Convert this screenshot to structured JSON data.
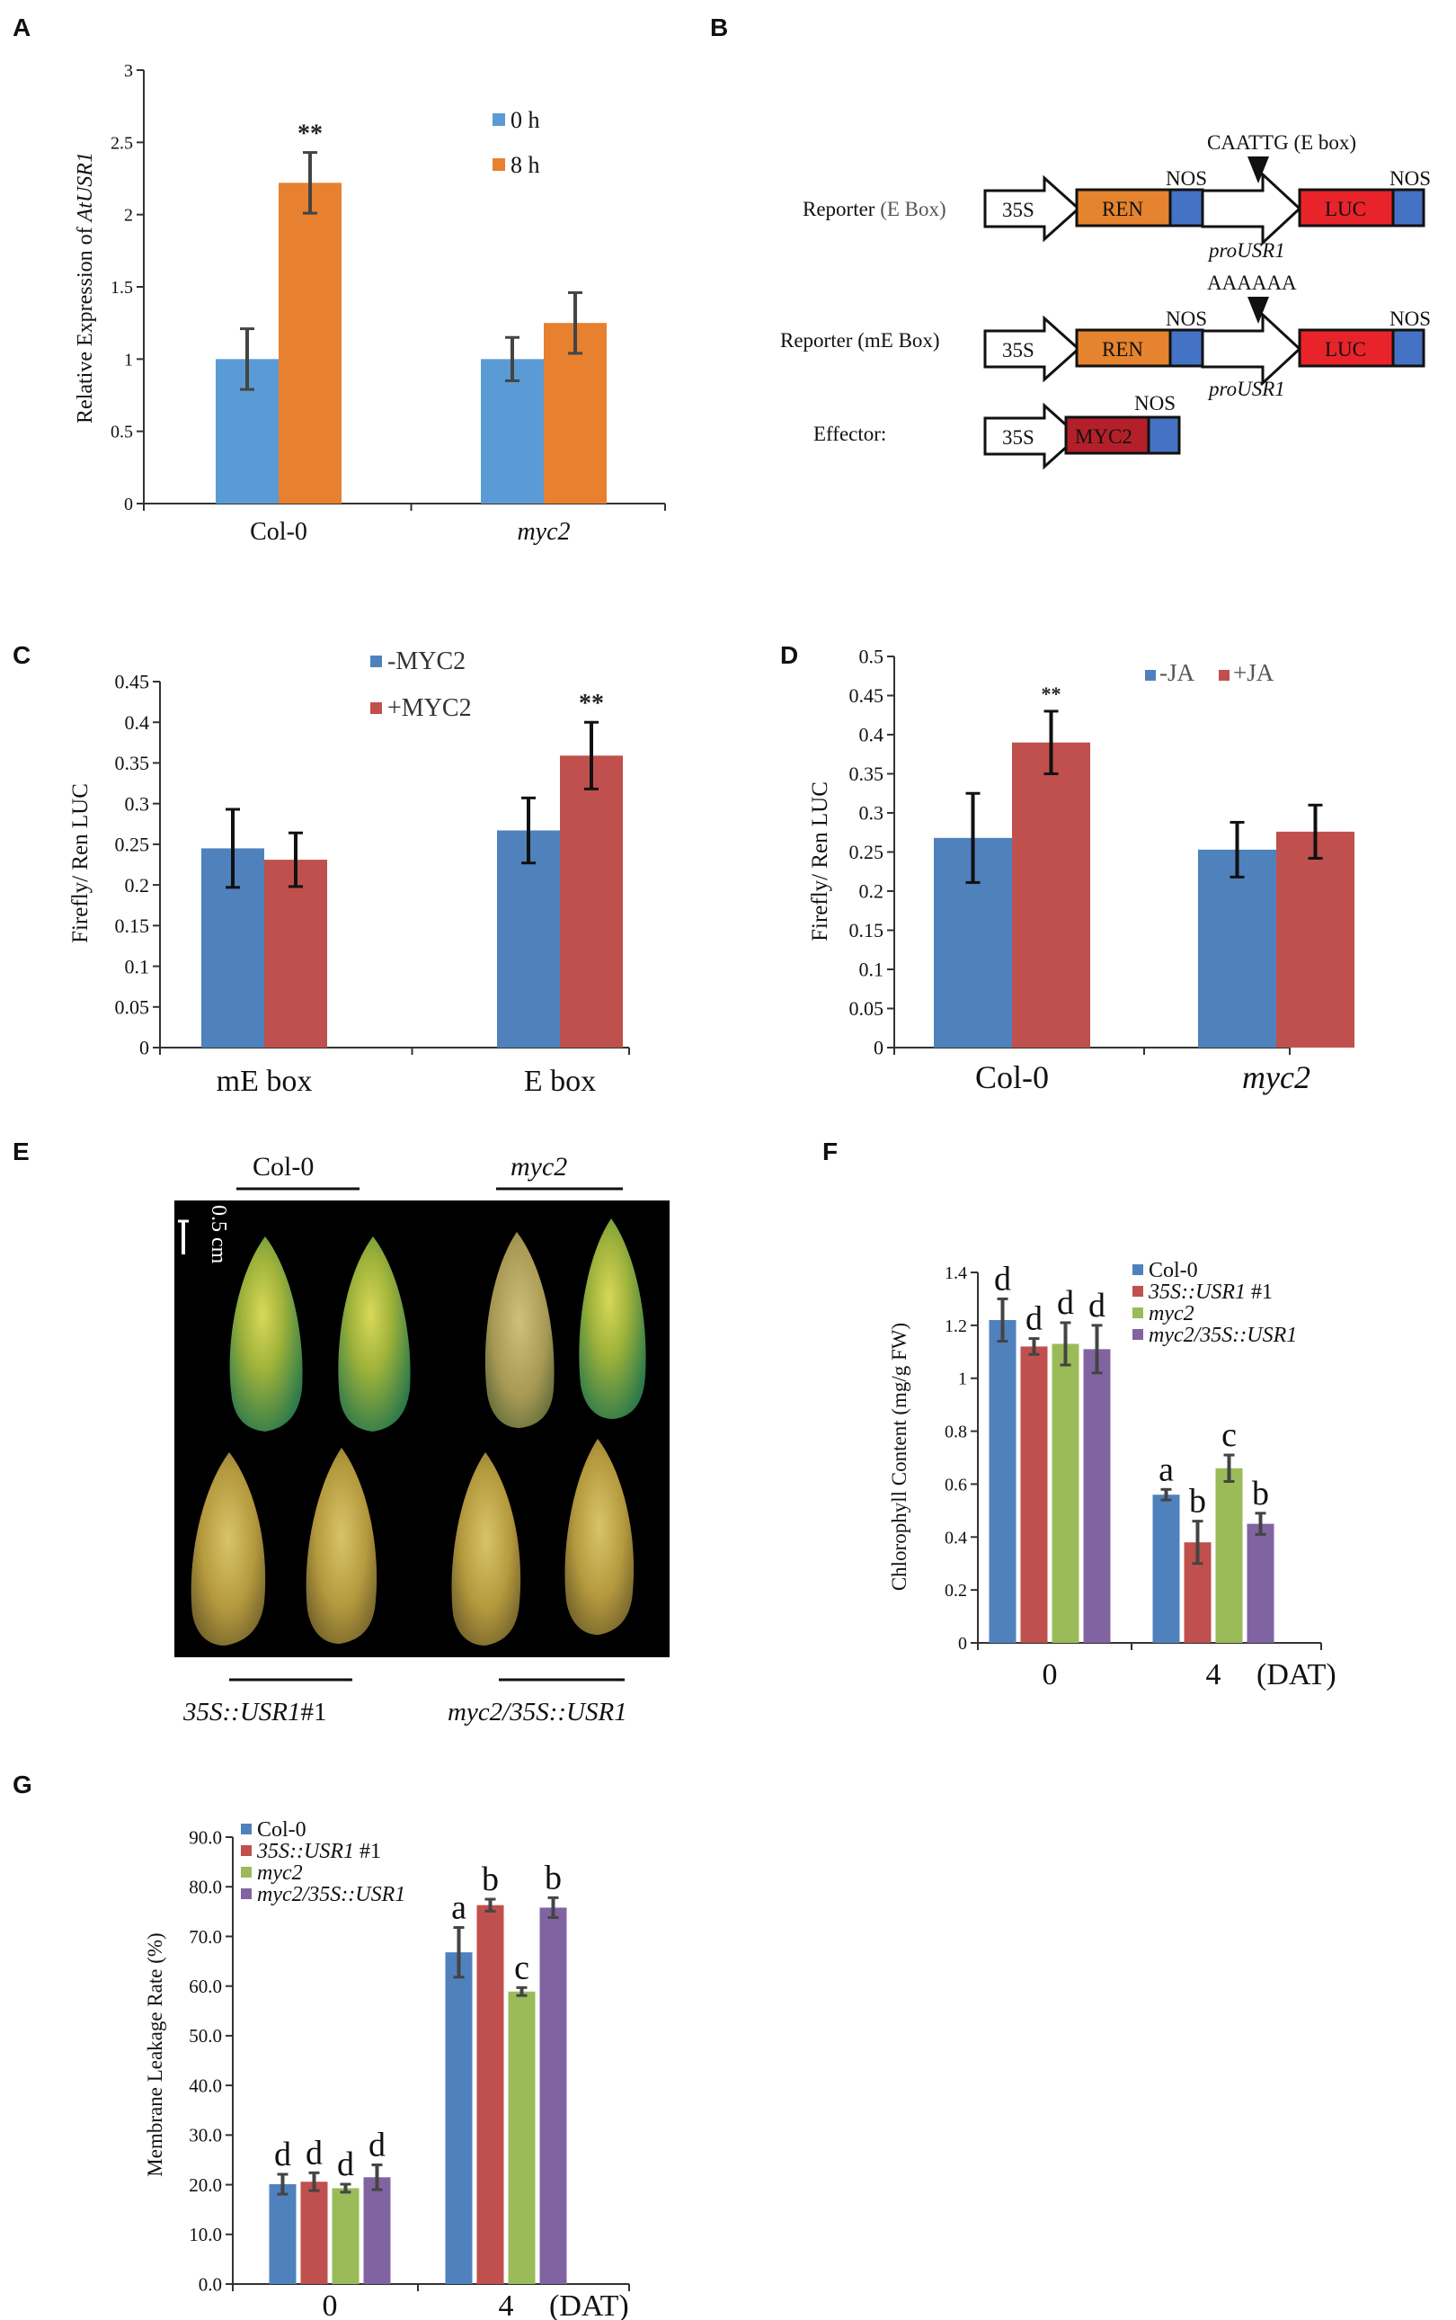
{
  "colors": {
    "blue": "#4F81BD",
    "orange": "#E7802F",
    "red": "#C0504D",
    "green": "#9BBB59",
    "purple": "#8064A2",
    "lightblue": "#5B9BD5",
    "luc_red": "#E8242A",
    "ren_orange": "#E5832E",
    "myc_red": "#B3202A",
    "nos_blue": "#4472C4"
  },
  "panel_letters": {
    "A": "A",
    "B": "B",
    "C": "C",
    "D": "D",
    "E": "E",
    "F": "F",
    "G": "G"
  },
  "chart_data": [
    {
      "id": "A",
      "type": "bar",
      "title": "",
      "ylabel_prefix": "Relative  Expression of ",
      "ylabel_gene": "AtUSR1",
      "xlabel": "",
      "categories": [
        "Col-0",
        "myc2"
      ],
      "category_italic": [
        false,
        true
      ],
      "series": [
        {
          "name": "0 h",
          "color": "#5B9BD5",
          "values": [
            1.0,
            1.0
          ],
          "errors": [
            0.21,
            0.15
          ]
        },
        {
          "name": "8 h",
          "color": "#E7802F",
          "values": [
            2.22,
            1.25
          ],
          "errors": [
            0.21,
            0.21
          ]
        }
      ],
      "ylim": [
        0,
        3
      ],
      "yticks": [
        0,
        0.5,
        1,
        1.5,
        2,
        2.5,
        3
      ],
      "ytick_labels": [
        "0",
        "0.5",
        "1",
        "1.5",
        "2",
        "2.5",
        "3"
      ],
      "significance": [
        {
          "category": 0,
          "series": 1,
          "text": "**"
        }
      ],
      "legend_position": "top-right"
    },
    {
      "id": "C",
      "type": "bar",
      "title": "",
      "ylabel": "Firefly/ Ren LUC",
      "xlabel": "",
      "categories": [
        "mE box",
        "E box"
      ],
      "category_italic": [
        false,
        false
      ],
      "series": [
        {
          "name": "-MYC2",
          "color": "#4F81BD",
          "values": [
            0.245,
            0.267
          ],
          "errors": [
            0.048,
            0.04
          ]
        },
        {
          "name": "+MYC2",
          "color": "#C0504D",
          "values": [
            0.231,
            0.359
          ],
          "errors": [
            0.033,
            0.041
          ]
        }
      ],
      "ylim": [
        0,
        0.45
      ],
      "yticks": [
        0,
        0.05,
        0.1,
        0.15,
        0.2,
        0.25,
        0.3,
        0.35,
        0.4,
        0.45
      ],
      "ytick_labels": [
        "0",
        "0.05",
        "0.1",
        "0.15",
        "0.2",
        "0.25",
        "0.3",
        "0.35",
        "0.4",
        "0.45"
      ],
      "significance": [
        {
          "category": 1,
          "series": 1,
          "text": "**"
        }
      ],
      "legend_position": "top-center"
    },
    {
      "id": "D",
      "type": "bar",
      "title": "",
      "ylabel": "Firefly/ Ren LUC",
      "xlabel": "",
      "categories": [
        "Col-0",
        "myc2"
      ],
      "category_italic": [
        false,
        true
      ],
      "series": [
        {
          "name": "-JA",
          "color": "#4F81BD",
          "values": [
            0.268,
            0.253
          ],
          "errors": [
            0.057,
            0.035
          ]
        },
        {
          "name": "+JA",
          "color": "#C0504D",
          "values": [
            0.39,
            0.276
          ],
          "errors": [
            0.04,
            0.034
          ]
        }
      ],
      "ylim": [
        0,
        0.5
      ],
      "yticks": [
        0,
        0.05,
        0.1,
        0.15,
        0.2,
        0.25,
        0.3,
        0.35,
        0.4,
        0.45,
        0.5
      ],
      "ytick_labels": [
        "0",
        "0.05",
        "0.1",
        "0.15",
        "0.2",
        "0.25",
        "0.3",
        "0.35",
        "0.4",
        "0.45",
        "0.5"
      ],
      "significance": [
        {
          "category": 0,
          "series": 1,
          "text": "**"
        }
      ],
      "legend_position": "top-right"
    },
    {
      "id": "F",
      "type": "bar",
      "title": "",
      "ylabel": "Chlorophyll Content (mg/g FW)",
      "xlabel": "",
      "categories": [
        "0",
        "4"
      ],
      "x_unit": "(DAT)",
      "category_italic": [
        false,
        false
      ],
      "series": [
        {
          "name": "Col-0",
          "label_prefix": "",
          "label_italic": "",
          "label_suffix": "Col-0",
          "color": "#4F81BD",
          "values": [
            1.22,
            0.56
          ],
          "errors": [
            0.08,
            0.02
          ],
          "letters": [
            "d",
            "a"
          ]
        },
        {
          "name": "35S::USR1 #1",
          "label_prefix": "",
          "label_italic": "35S::USR1",
          "label_suffix": " #1",
          "color": "#C0504D",
          "values": [
            1.12,
            0.38
          ],
          "errors": [
            0.03,
            0.08
          ],
          "letters": [
            "d",
            "b"
          ]
        },
        {
          "name": "myc2",
          "label_prefix": "",
          "label_italic": "myc2",
          "label_suffix": "",
          "color": "#9BBB59",
          "values": [
            1.13,
            0.66
          ],
          "errors": [
            0.08,
            0.05
          ],
          "letters": [
            "d",
            "c"
          ]
        },
        {
          "name": "myc2/35S::USR1",
          "label_prefix": "",
          "label_italic": "myc2/35S::USR1",
          "label_suffix": "",
          "color": "#8064A2",
          "values": [
            1.11,
            0.45
          ],
          "errors": [
            0.09,
            0.04
          ],
          "letters": [
            "d",
            "b"
          ]
        }
      ],
      "ylim": [
        0,
        1.4
      ],
      "yticks": [
        0,
        0.2,
        0.4,
        0.6,
        0.8,
        1,
        1.2,
        1.4
      ],
      "ytick_labels": [
        "0",
        "0.2",
        "0.4",
        "0.6",
        "0.8",
        "1",
        "1.2",
        "1.4"
      ],
      "legend_position": "top-right"
    },
    {
      "id": "G",
      "type": "bar",
      "title": "",
      "ylabel": "Membrane Leakage Rate (%)",
      "xlabel": "",
      "categories": [
        "0",
        "4"
      ],
      "x_unit": "(DAT)",
      "category_italic": [
        false,
        false
      ],
      "series": [
        {
          "name": "Col-0",
          "label_prefix": "",
          "label_italic": "",
          "label_suffix": "Col-0",
          "color": "#4F81BD",
          "values": [
            20.1,
            66.8
          ],
          "errors": [
            2.0,
            5.0
          ],
          "letters": [
            "d",
            "a"
          ]
        },
        {
          "name": "35S::USR1 #1",
          "label_prefix": "",
          "label_italic": "35S::USR1",
          "label_suffix": " #1",
          "color": "#C0504D",
          "values": [
            20.6,
            76.3
          ],
          "errors": [
            1.8,
            1.2
          ],
          "letters": [
            "d",
            "b"
          ]
        },
        {
          "name": "myc2",
          "label_prefix": "",
          "label_italic": "myc2",
          "label_suffix": "",
          "color": "#9BBB59",
          "values": [
            19.3,
            58.9
          ],
          "errors": [
            0.8,
            0.8
          ],
          "letters": [
            "d",
            "c"
          ]
        },
        {
          "name": "myc2/35S::USR1",
          "label_prefix": "",
          "label_italic": "myc2/35S::USR1",
          "label_suffix": "",
          "color": "#8064A2",
          "values": [
            21.5,
            75.8
          ],
          "errors": [
            2.5,
            2.0
          ],
          "letters": [
            "d",
            "b"
          ]
        }
      ],
      "ylim": [
        0,
        90
      ],
      "yticks": [
        0,
        10,
        20,
        30,
        40,
        50,
        60,
        70,
        80,
        90
      ],
      "ytick_labels": [
        "0.0",
        "10.0",
        "20.0",
        "30.0",
        "40.0",
        "50.0",
        "60.0",
        "70.0",
        "80.0",
        "90.0"
      ],
      "legend_position": "top-left"
    }
  ],
  "diagram_B": {
    "reporter_e_label": "Reporter",
    "reporter_e_box": "(E Box)",
    "reporter_me_label": "Reporter (mE Box)",
    "effector_label": "Effector:",
    "promoter_35s": "35S",
    "ren": "REN",
    "nos": "NOS",
    "luc": "LUC",
    "myc2": "MYC2",
    "pro_usr1": "proUSR1",
    "e_box_seq": "CAATTG (E box)",
    "me_box_seq": "AAAAAA"
  },
  "photo_E": {
    "top_left_label": "Col-0",
    "top_right_label": "myc2",
    "bottom_left_italic": "35S::USR1",
    "bottom_left_suffix": "#1",
    "bottom_right_label": "myc2/35S::USR1",
    "scale_label": "0.5 cm"
  }
}
